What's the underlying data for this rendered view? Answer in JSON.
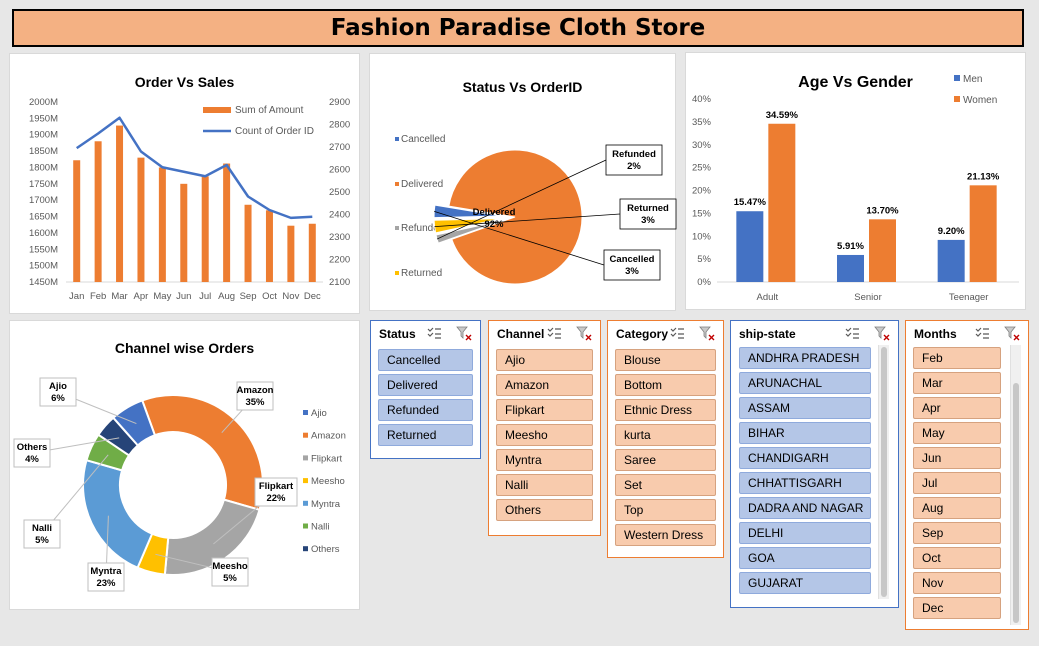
{
  "banner": {
    "title": "Fashion Paradise Cloth Store"
  },
  "charts": {
    "order_sales": {
      "title": "Order Vs Sales",
      "legend": [
        "Sum of Amount",
        "Count of Order ID"
      ],
      "y_left_ticks": [
        "2000M",
        "1950M",
        "1900M",
        "1850M",
        "1800M",
        "1750M",
        "1700M",
        "1650M",
        "1600M",
        "1550M",
        "1500M",
        "1450M"
      ],
      "y_right_ticks": [
        "2900",
        "2800",
        "2700",
        "2600",
        "2500",
        "2400",
        "2300",
        "2200",
        "2100"
      ],
      "months": [
        "Jan",
        "Feb",
        "Mar",
        "Apr",
        "May",
        "Jun",
        "Jul",
        "Aug",
        "Sep",
        "Oct",
        "Nov",
        "Dec"
      ]
    },
    "status_order": {
      "title": "Status Vs OrderID",
      "legend": [
        "Cancelled",
        "Delivered",
        "Refunded",
        "Returned"
      ],
      "labels": {
        "delivered": [
          "Delivered",
          "92%"
        ],
        "refunded": [
          "Refunded",
          "2%"
        ],
        "returned": [
          "Returned",
          "3%"
        ],
        "cancelled": [
          "Cancelled",
          "3%"
        ]
      }
    },
    "age_gender": {
      "title": "Age Vs Gender",
      "legend": [
        "Men",
        "Women"
      ],
      "y_ticks": [
        "40%",
        "35%",
        "30%",
        "25%",
        "20%",
        "15%",
        "10%",
        "5%",
        "0%"
      ],
      "categories": [
        "Adult",
        "Senior",
        "Teenager"
      ],
      "labels": [
        "15.47%",
        "34.59%",
        "5.91%",
        "13.70%",
        "9.20%",
        "21.13%"
      ]
    },
    "channel": {
      "title": "Channel wise Orders",
      "legend": [
        "Ajio",
        "Amazon",
        "Flipkart",
        "Meesho",
        "Myntra",
        "Nalli",
        "Others"
      ],
      "callouts": [
        [
          "Ajio",
          "6%"
        ],
        [
          "Amazon",
          "35%"
        ],
        [
          "Others",
          "4%"
        ],
        [
          "Flipkart",
          "22%"
        ],
        [
          "Nalli",
          "5%"
        ],
        [
          "Myntra",
          "23%"
        ],
        [
          "Meesho",
          "5%"
        ]
      ]
    }
  },
  "chart_data": [
    {
      "type": "bar",
      "title": "Order Vs Sales",
      "categories": [
        "Jan",
        "Feb",
        "Mar",
        "Apr",
        "May",
        "Jun",
        "Jul",
        "Aug",
        "Sep",
        "Oct",
        "Nov",
        "Dec"
      ],
      "series": [
        {
          "name": "Sum of Amount",
          "values": [
            1822,
            1880,
            1928,
            1830,
            1800,
            1750,
            1773,
            1812,
            1686,
            1669,
            1622,
            1628
          ]
        },
        {
          "name": "Count of Order ID",
          "values": [
            2695,
            2760,
            2830,
            2680,
            2610,
            2590,
            2570,
            2620,
            2480,
            2420,
            2385,
            2390
          ]
        }
      ],
      "ylim": [
        1450,
        2000
      ],
      "y2lim": [
        2100,
        2900
      ]
    },
    {
      "type": "pie",
      "title": "Status Vs OrderID",
      "categories": [
        "Delivered",
        "Refunded",
        "Returned",
        "Cancelled"
      ],
      "values": [
        92,
        2,
        3,
        3
      ]
    },
    {
      "type": "bar",
      "title": "Age Vs Gender",
      "categories": [
        "Adult",
        "Senior",
        "Teenager"
      ],
      "series": [
        {
          "name": "Men",
          "values": [
            15.47,
            5.91,
            9.2
          ]
        },
        {
          "name": "Women",
          "values": [
            34.59,
            13.7,
            21.13
          ]
        }
      ],
      "ylim": [
        0,
        40
      ]
    },
    {
      "type": "pie",
      "title": "Channel wise Orders",
      "categories": [
        "Amazon",
        "Flipkart",
        "Meesho",
        "Myntra",
        "Nalli",
        "Others",
        "Ajio"
      ],
      "values": [
        35,
        22,
        5,
        23,
        5,
        4,
        6
      ]
    }
  ],
  "colors": {
    "orange": "#ed7d31",
    "blue": "#4472c4",
    "gray": "#a5a5a5",
    "yellow": "#ffc000",
    "lightblue": "#5b9bd5",
    "green": "#70ad47",
    "navy": "#264478"
  },
  "slicers": {
    "status": {
      "title": "Status",
      "items": [
        "Cancelled",
        "Delivered",
        "Refunded",
        "Returned"
      ]
    },
    "channel": {
      "title": "Channel",
      "items": [
        "Ajio",
        "Amazon",
        "Flipkart",
        "Meesho",
        "Myntra",
        "Nalli",
        "Others"
      ]
    },
    "category": {
      "title": "Category",
      "items": [
        "Blouse",
        "Bottom",
        "Ethnic Dress",
        "kurta",
        "Saree",
        "Set",
        "Top",
        "Western Dress"
      ]
    },
    "ship_state": {
      "title": "ship-state",
      "items": [
        "ANDHRA PRADESH",
        "ARUNACHAL PRADESH",
        "ASSAM",
        "BIHAR",
        "CHANDIGARH",
        "CHHATTISGARH",
        "DADRA AND NAGAR",
        "DELHI",
        "GOA",
        "GUJARAT"
      ]
    },
    "months": {
      "title": "Months",
      "items": [
        "Feb",
        "Mar",
        "Apr",
        "May",
        "Jun",
        "Jul",
        "Aug",
        "Sep",
        "Oct",
        "Nov",
        "Dec"
      ]
    }
  }
}
